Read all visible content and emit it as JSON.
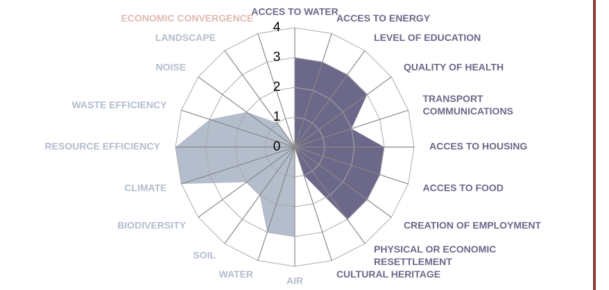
{
  "chart_data": {
    "type": "radar",
    "categories": [
      "ACCES TO WATER",
      "ACCES TO ENERGY",
      "LEVEL OF EDUCATION",
      "QUALITY OF HEALTH",
      "TRANSPORT\nCOMMUNICATIONS",
      "ACCES TO HOUSING",
      "ACCES TO FOOD",
      "CREATION OF EMPLOYMENT",
      "PHYSICAL OR ECONOMIC\nRESETTLEMENT",
      "CULTURAL HERITAGE",
      "AIR",
      "WATER",
      "SOIL",
      "BIODIVERSITY",
      "CLIMATE",
      "RESOURCE EFFICIENCY",
      "WASTE EFFICIENCY",
      "NOISE",
      "LANDSCAPE",
      "ECONOMIC CONVERGENCE"
    ],
    "series": [
      {
        "color": "#6b6889",
        "values": [
          3,
          3,
          3,
          3,
          2,
          3,
          3,
          3,
          3,
          1,
          0,
          0,
          0,
          0,
          0,
          0,
          0,
          0,
          0,
          0
        ]
      },
      {
        "color": "#b3bdcb",
        "values": [
          0,
          0,
          0,
          0,
          0,
          0,
          0,
          0,
          0,
          0,
          3,
          3,
          2,
          2,
          4,
          4,
          3,
          2,
          1,
          0
        ]
      },
      {
        "color": "#deb9b1",
        "values": [
          0,
          0,
          0,
          0,
          0,
          0,
          0,
          0,
          0,
          0,
          0,
          0,
          0,
          0,
          0,
          0,
          0,
          0,
          0,
          3
        ]
      }
    ],
    "rlim": [
      0,
      4
    ],
    "rticks": [
      0,
      1,
      2,
      3,
      4
    ],
    "grid": true
  }
}
